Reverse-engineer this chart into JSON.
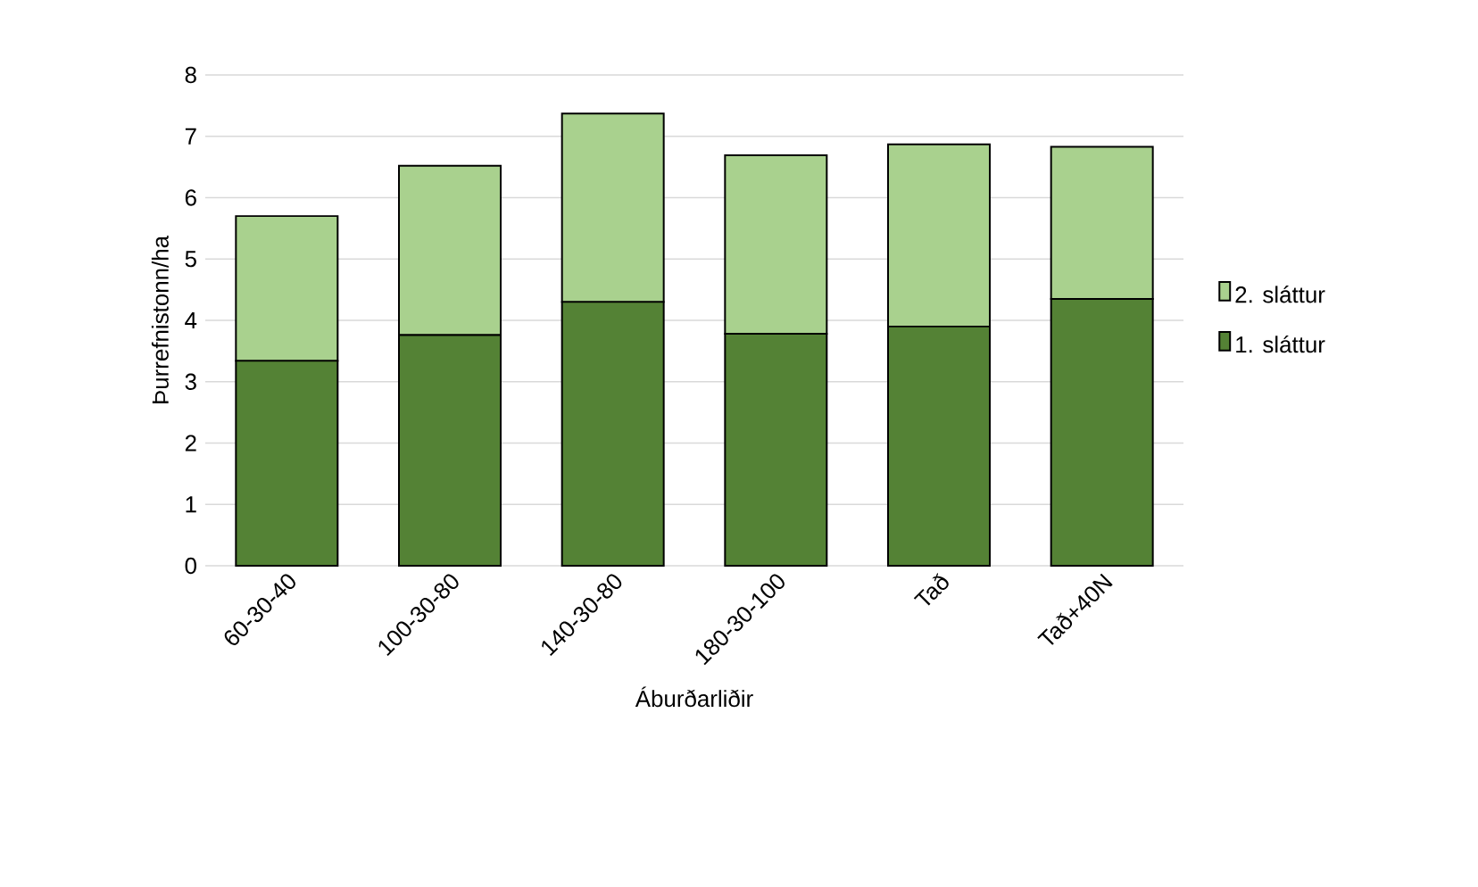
{
  "chart_data": {
    "type": "bar",
    "stacked": true,
    "xlabel": "Áburðarliðir",
    "ylabel": "Þurrefnistonn/ha",
    "categories": [
      "60-30-40",
      "100-30-80",
      "140-30-80",
      "180-30-100",
      "Tað",
      "Tað+40N"
    ],
    "series": [
      {
        "name": "1. sláttur",
        "color": "#548235",
        "values": [
          3.34,
          3.76,
          4.3,
          3.78,
          3.9,
          4.35
        ]
      },
      {
        "name": "2. sláttur",
        "color": "#a9d18e",
        "values": [
          2.36,
          2.76,
          3.07,
          2.91,
          2.97,
          2.48
        ]
      }
    ],
    "ylim": [
      0,
      8
    ],
    "yticks": [
      0,
      1,
      2,
      3,
      4,
      5,
      6,
      7,
      8
    ],
    "grid": "y",
    "legend": "right"
  }
}
